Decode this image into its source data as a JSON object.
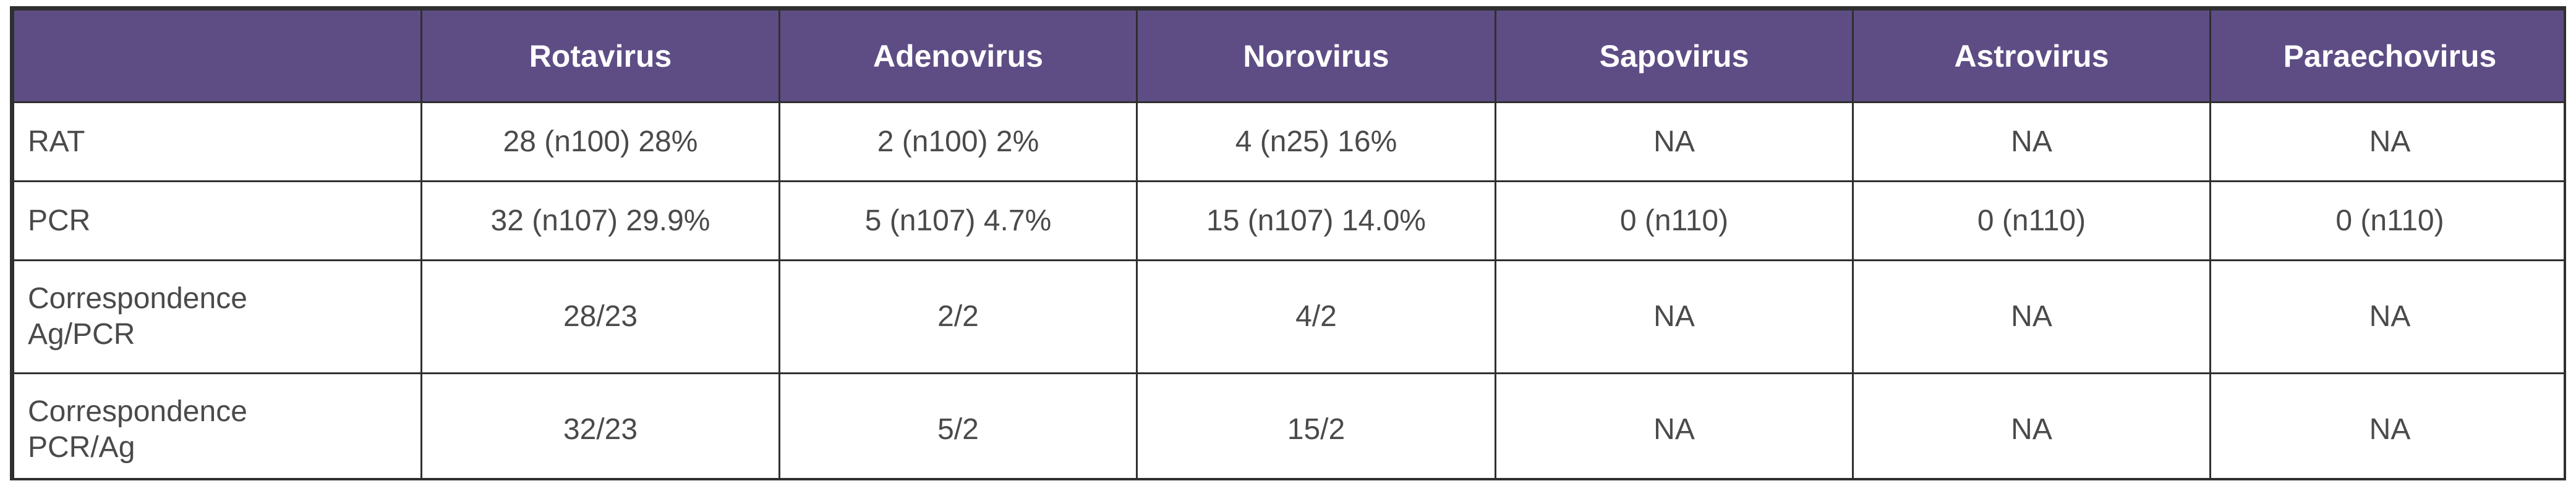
{
  "table": {
    "headers": [
      "",
      "Rotavirus",
      "Adenovirus",
      "Norovirus",
      "Sapovirus",
      "Astrovirus",
      "Paraechovirus"
    ],
    "rows": [
      {
        "label": "RAT",
        "cells": [
          "28 (n100) 28%",
          "2 (n100) 2%",
          "4 (n25) 16%",
          "NA",
          "NA",
          "NA"
        ]
      },
      {
        "label": "PCR",
        "cells": [
          "32 (n107) 29.9%",
          "5 (n107) 4.7%",
          "15 (n107) 14.0%",
          "0 (n110)",
          "0 (n110)",
          "0 (n110)"
        ]
      },
      {
        "label_line1": "Correspondence",
        "label_line2": "Ag/PCR",
        "cells": [
          "28/23",
          "2/2",
          "4/2",
          "NA",
          "NA",
          "NA"
        ]
      },
      {
        "label_line1": "Correspondence",
        "label_line2": "PCR/Ag",
        "cells": [
          "32/23",
          "5/2",
          "15/2",
          "NA",
          "NA",
          "NA"
        ]
      }
    ]
  },
  "colors": {
    "header_background": "#5e4d85",
    "header_text": "#ffffff",
    "body_text": "#4a4a4a",
    "border": "#2f2f2f"
  }
}
